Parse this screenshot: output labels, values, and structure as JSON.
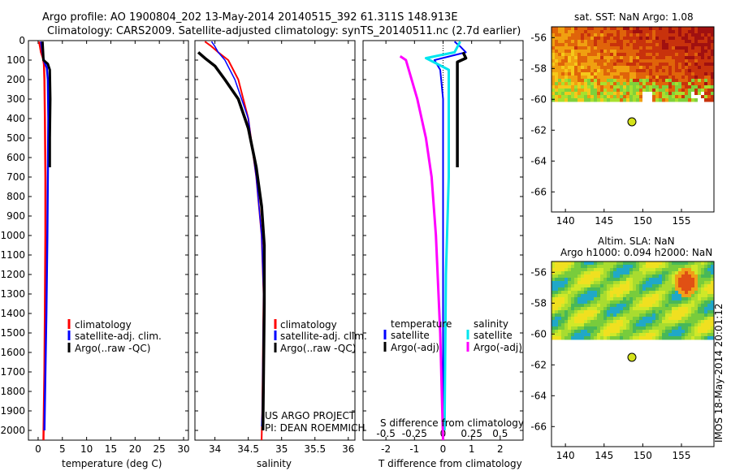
{
  "header": {
    "line1": "Argo profile: AO 1900804_202 13-May-2014 20140515_392 61.311S 148.913E",
    "line2": "Climatology: CARS2009. Satellite-adjusted climatology: synTS_20140511.nc (2.7d earlier)"
  },
  "colors": {
    "climatology": "#ff0000",
    "satellite": "#0000ff",
    "argo": "#000000",
    "satellite_s": "#00e5ee",
    "argo_s": "#ff00ff"
  },
  "chart_data": [
    {
      "type": "line",
      "panel": "temperature",
      "xlabel": "temperature (deg C)",
      "xlim": [
        -2,
        31
      ],
      "xticks": [
        0,
        5,
        10,
        15,
        20,
        25,
        30
      ],
      "ylim": [
        2050,
        0
      ],
      "yticks": [
        0,
        100,
        200,
        300,
        400,
        500,
        600,
        700,
        800,
        900,
        1000,
        1100,
        1200,
        1300,
        1400,
        1500,
        1600,
        1700,
        1800,
        1900,
        2000
      ],
      "legend": [
        "climatology",
        "satellite-adj. clim.",
        "Argo(..raw -QC)"
      ],
      "series": [
        {
          "name": "climatology",
          "color": "#ff0000",
          "points": [
            [
              0.2,
              5
            ],
            [
              0.4,
              30
            ],
            [
              0.6,
              60
            ],
            [
              1.0,
              90
            ],
            [
              1.2,
              120
            ],
            [
              1.3,
              200
            ],
            [
              1.4,
              400
            ],
            [
              1.5,
              700
            ],
            [
              1.5,
              1000
            ],
            [
              1.4,
              1400
            ],
            [
              1.3,
              1700
            ],
            [
              1.1,
              2050
            ]
          ]
        },
        {
          "name": "satellite-adj. clim.",
          "color": "#0000ff",
          "points": [
            [
              0.6,
              5
            ],
            [
              0.8,
              40
            ],
            [
              1.0,
              80
            ],
            [
              1.3,
              110
            ],
            [
              1.8,
              140
            ],
            [
              2.0,
              200
            ],
            [
              2.1,
              400
            ],
            [
              2.0,
              700
            ],
            [
              1.9,
              1000
            ],
            [
              1.7,
              1400
            ],
            [
              1.5,
              1700
            ],
            [
              1.3,
              2000
            ]
          ]
        },
        {
          "name": "Argo(..raw -QC)",
          "color": "#000000",
          "points": [
            [
              0.9,
              5
            ],
            [
              1.0,
              50
            ],
            [
              1.1,
              100
            ],
            [
              2.0,
              120
            ],
            [
              2.4,
              150
            ],
            [
              2.5,
              300
            ],
            [
              2.4,
              500
            ],
            [
              2.4,
              650
            ]
          ]
        }
      ]
    },
    {
      "type": "line",
      "panel": "salinity",
      "xlabel": "salinity",
      "xlim": [
        33.7,
        36.1
      ],
      "xticks": [
        34,
        34.5,
        35,
        35.5,
        36
      ],
      "ylim": [
        2050,
        0
      ],
      "legend": [
        "climatology",
        "satellite-adj. clim.",
        "Argo(..raw -QC)"
      ],
      "series": [
        {
          "name": "climatology",
          "color": "#ff0000",
          "points": [
            [
              33.85,
              5
            ],
            [
              33.95,
              30
            ],
            [
              34.05,
              60
            ],
            [
              34.2,
              100
            ],
            [
              34.35,
              200
            ],
            [
              34.5,
              400
            ],
            [
              34.62,
              700
            ],
            [
              34.7,
              1000
            ],
            [
              34.73,
              1300
            ],
            [
              34.72,
              1600
            ],
            [
              34.71,
              1900
            ],
            [
              34.7,
              2050
            ]
          ]
        },
        {
          "name": "satellite-adj. clim.",
          "color": "#0000ff",
          "points": [
            [
              33.95,
              5
            ],
            [
              34.0,
              30
            ],
            [
              34.05,
              60
            ],
            [
              34.15,
              100
            ],
            [
              34.3,
              200
            ],
            [
              34.5,
              400
            ],
            [
              34.62,
              700
            ],
            [
              34.7,
              1000
            ],
            [
              34.73,
              1300
            ],
            [
              34.72,
              1600
            ],
            [
              34.71,
              1900
            ],
            [
              34.7,
              1980
            ]
          ]
        },
        {
          "name": "Argo(..raw -QC)",
          "color": "#000000",
          "points": [
            [
              33.75,
              60
            ],
            [
              33.85,
              90
            ],
            [
              34.0,
              130
            ],
            [
              34.15,
              200
            ],
            [
              34.35,
              300
            ],
            [
              34.5,
              450
            ],
            [
              34.62,
              650
            ],
            [
              34.7,
              850
            ],
            [
              34.74,
              1050
            ],
            [
              34.74,
              1350
            ],
            [
              34.73,
              1700
            ],
            [
              34.72,
              2000
            ]
          ]
        }
      ]
    },
    {
      "type": "line",
      "panel": "difference",
      "xlabel": "T difference from climatology",
      "x2label": "S difference from climatology",
      "xlim": [
        -2.8,
        2.8
      ],
      "xticks": [
        -2,
        -1,
        0,
        1,
        2
      ],
      "x2ticks": [
        "-0.5",
        "-0.25",
        "0",
        "0.25",
        "0.5"
      ],
      "x2tick_T": [
        -2,
        -1,
        0,
        1,
        2
      ],
      "ylim": [
        2050,
        0
      ],
      "legend_titles": [
        "temperature",
        "salinity"
      ],
      "legend": [
        "satellite",
        "Argo(-adj)",
        "satellite",
        "Argo(-adj)"
      ],
      "series": [
        {
          "name": "satellite",
          "group": "temperature",
          "color": "#0000ff",
          "points": [
            [
              0.4,
              5
            ],
            [
              0.6,
              30
            ],
            [
              0.8,
              60
            ],
            [
              -0.3,
              100
            ],
            [
              -0.1,
              150
            ],
            [
              0,
              300
            ],
            [
              0,
              1000
            ],
            [
              0,
              2000
            ]
          ]
        },
        {
          "name": "Argo(-adj)",
          "group": "temperature",
          "color": "#000000",
          "points": [
            [
              0.7,
              60
            ],
            [
              0.8,
              90
            ],
            [
              0.5,
              110
            ],
            [
              0.5,
              150
            ],
            [
              0.5,
              200
            ],
            [
              0.5,
              400
            ],
            [
              0.5,
              650
            ]
          ]
        },
        {
          "name": "satellite",
          "group": "salinity",
          "color": "#00e5ee",
          "points": [
            [
              0.6,
              5
            ],
            [
              0.4,
              60
            ],
            [
              -0.6,
              90
            ],
            [
              0.2,
              150
            ],
            [
              0.2,
              300
            ],
            [
              0.2,
              700
            ],
            [
              0.1,
              1200
            ],
            [
              0.05,
              2000
            ]
          ]
        },
        {
          "name": "Argo(-adj)",
          "group": "salinity",
          "color": "#ff00ff",
          "points": [
            [
              -1.5,
              80
            ],
            [
              -1.3,
              100
            ],
            [
              -1.2,
              150
            ],
            [
              -0.9,
              300
            ],
            [
              -0.6,
              500
            ],
            [
              -0.4,
              700
            ],
            [
              -0.25,
              1000
            ],
            [
              -0.1,
              1500
            ],
            [
              0,
              2050
            ]
          ]
        }
      ]
    }
  ],
  "project": {
    "line1": "US ARGO PROJECT",
    "line2": "PI: DEAN ROEMMICH"
  },
  "maps": [
    {
      "title": "sat. SST: NaN Argo: 1.08",
      "xticks": [
        "140",
        "145",
        "150",
        "155"
      ],
      "yticks": [
        "-56",
        "-58",
        "-60",
        "-62",
        "-64",
        "-66"
      ],
      "float_lon": 148.9,
      "float_lat": -61.3
    },
    {
      "title1": "Altim. SLA: NaN",
      "title2": "Argo h1000: 0.094 h2000: NaN",
      "xticks": [
        "140",
        "145",
        "150",
        "155"
      ],
      "yticks": [
        "-56",
        "-58",
        "-60",
        "-62",
        "-64",
        "-66"
      ],
      "float_lon": 148.9,
      "float_lat": -61.3
    }
  ],
  "timestamp": "IMOS 18-May-2014 20:01:12"
}
